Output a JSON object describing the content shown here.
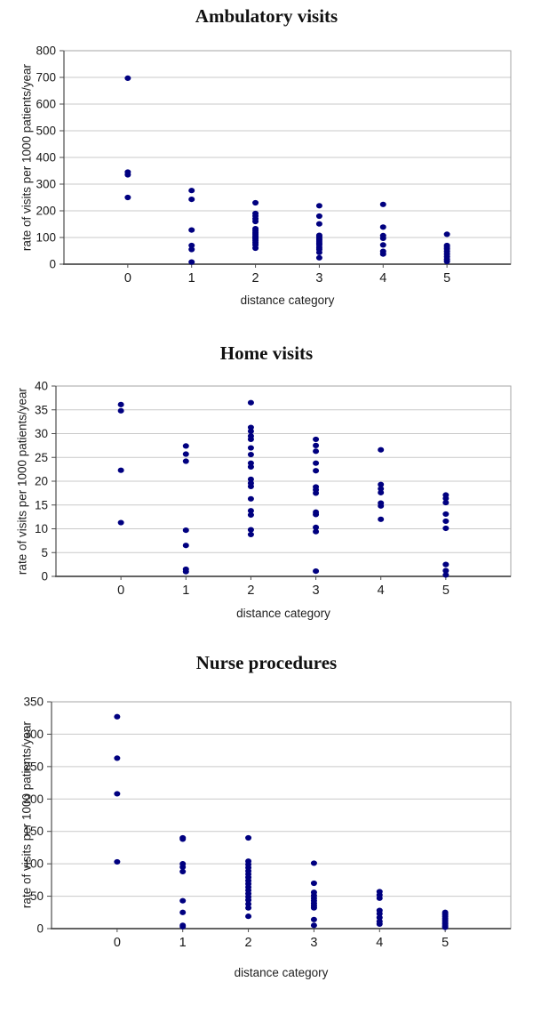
{
  "style": {
    "background": "#ffffff",
    "marker_color": "#000080",
    "gridline_color": "#c9c9c9",
    "border_color": "#a6a6a6",
    "axis_color": "#4d4d4d",
    "text_color": "#1a1a1a",
    "title_color": "#111111"
  },
  "chart_data": [
    {
      "type": "scatter",
      "title": "Ambulatory visits",
      "xlabel": "distance category",
      "ylabel": "rate of visits per 1000 patients/year",
      "categories": [
        "0",
        "1",
        "2",
        "3",
        "4",
        "5"
      ],
      "ylim": [
        0,
        800
      ],
      "ytick_step": 100,
      "grid": "horizontal",
      "legend": "none",
      "marker_color": "#000080",
      "values_by_category": [
        [
          697,
          345,
          335,
          250
        ],
        [
          276,
          243,
          128,
          70,
          55,
          8
        ],
        [
          230,
          190,
          181,
          170,
          160,
          133,
          125,
          118,
          112,
          106,
          100,
          95,
          88,
          80,
          72,
          60
        ],
        [
          219,
          180,
          151,
          108,
          102,
          96,
          90,
          84,
          78,
          72,
          63,
          55,
          44,
          24
        ],
        [
          224,
          139,
          107,
          97,
          72,
          48,
          38
        ],
        [
          112,
          70,
          64,
          57,
          48,
          38,
          28,
          18,
          10
        ]
      ]
    },
    {
      "type": "scatter",
      "title": "Home visits",
      "xlabel": "distance category",
      "ylabel": "rate of visits per 1000 patients/year",
      "categories": [
        "0",
        "1",
        "2",
        "3",
        "4",
        "5"
      ],
      "ylim": [
        0,
        40
      ],
      "ytick_step": 5,
      "grid": "horizontal",
      "legend": "none",
      "marker_color": "#000080",
      "values_by_category": [
        [
          36.1,
          34.8,
          22.3,
          11.3
        ],
        [
          27.4,
          25.7,
          24.2,
          9.7,
          6.5,
          1.5,
          1.0
        ],
        [
          36.5,
          31.3,
          30.5,
          29.5,
          28.8,
          27.0,
          25.6,
          23.8,
          23.0,
          20.4,
          19.6,
          18.9,
          16.3,
          13.8,
          12.9,
          9.8,
          8.8
        ],
        [
          28.8,
          27.5,
          26.3,
          23.8,
          22.2,
          18.8,
          18.2,
          17.5,
          13.5,
          13.0,
          10.3,
          9.4,
          1.1
        ],
        [
          26.6,
          19.3,
          18.4,
          17.6,
          15.4,
          14.8,
          12.0
        ],
        [
          17.1,
          16.4,
          15.5,
          13.1,
          11.6,
          10.1,
          2.5,
          1.2,
          0.3
        ]
      ]
    },
    {
      "type": "scatter",
      "title": "Nurse procedures",
      "xlabel": "distance category",
      "ylabel": "rate of visits per 1000 patients/year",
      "categories": [
        "0",
        "1",
        "2",
        "3",
        "4",
        "5"
      ],
      "ylim": [
        0,
        350
      ],
      "ytick_step": 50,
      "grid": "horizontal",
      "legend": "none",
      "marker_color": "#000080",
      "values_by_category": [
        [
          327,
          263,
          208,
          103
        ],
        [
          140,
          138,
          100,
          95,
          88,
          43,
          25,
          5,
          3
        ],
        [
          140,
          104,
          99,
          94,
          89,
          84,
          79,
          74,
          69,
          64,
          59,
          54,
          49,
          44,
          38,
          32,
          19
        ],
        [
          101,
          70,
          56,
          51,
          47,
          43,
          39,
          35,
          32,
          14,
          5
        ],
        [
          57,
          52,
          47,
          28,
          23,
          17,
          11,
          7
        ],
        [
          25,
          22,
          19,
          16,
          13,
          10,
          7,
          4,
          2
        ]
      ]
    }
  ]
}
